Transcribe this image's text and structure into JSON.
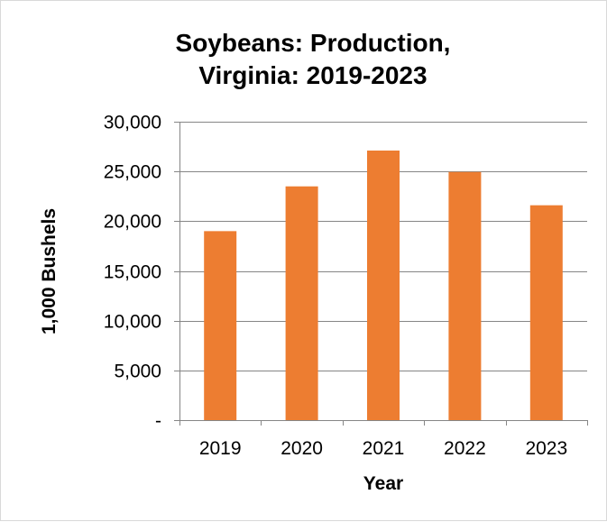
{
  "chart_data": {
    "type": "bar",
    "title_lines": [
      "Soybeans: Production,",
      "Virginia: 2019-2023"
    ],
    "xlabel": "Year",
    "ylabel": "1,000 Bushels",
    "categories": [
      "2019",
      "2020",
      "2021",
      "2022",
      "2023"
    ],
    "values": [
      19000,
      23500,
      27100,
      24950,
      21600
    ],
    "ylim": [
      0,
      30000
    ],
    "yticks": [
      0,
      5000,
      10000,
      15000,
      20000,
      25000,
      30000
    ],
    "ytick_labels": [
      "-",
      "5,000",
      "10,000",
      "15,000",
      "20,000",
      "25,000",
      "30,000"
    ],
    "grid": true,
    "legend": "none",
    "bar_color": "#ED7D31",
    "grid_color": "#868686"
  }
}
